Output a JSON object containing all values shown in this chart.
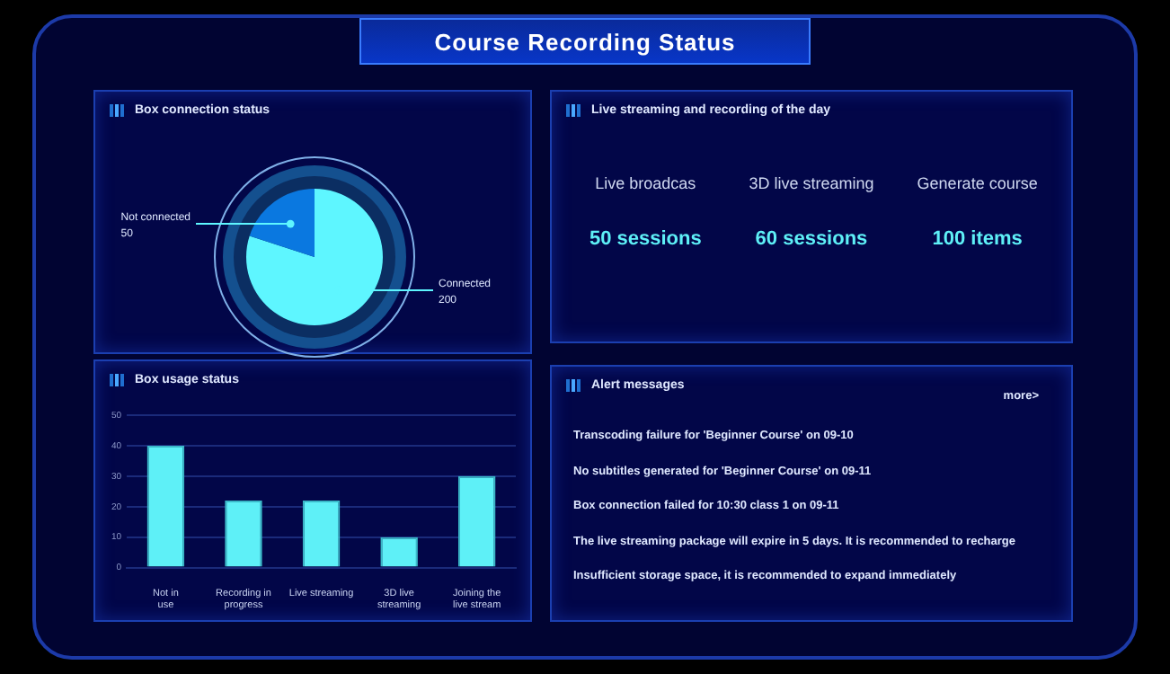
{
  "chart_data": [
    {
      "type": "other",
      "title": "Course Recording Status"
    },
    {
      "type": "pie",
      "title": "Box connection status",
      "categories": [
        "Connected",
        "Not connected"
      ],
      "values": [
        200,
        50
      ],
      "colors": [
        "#5ef6ff",
        "#0a78e0"
      ],
      "data_labels": true
    },
    {
      "type": "other",
      "title": "Live streaming and recording of the day",
      "annotations": [
        "Live broadcas",
        "3D live streaming",
        "Generate course",
        "50 sessions",
        "60 sessions",
        "100 items"
      ]
    },
    {
      "type": "bar",
      "title": "Box usage status",
      "categories": [
        "Not in use",
        "Recording in progress",
        "Live streaming",
        "3D live streaming",
        "Joining the live stream"
      ],
      "values": [
        40,
        22,
        22,
        10,
        30
      ],
      "color": "#5ef0f7",
      "ylim": [
        0,
        50
      ],
      "yticks": [
        0,
        10,
        20,
        30,
        40,
        50
      ],
      "grid": "y"
    },
    {
      "type": "other",
      "title": "Alert messages",
      "annotations": [
        "more>",
        "Transcoding failure for 'Beginner Course' on 09-10",
        "No subtitles generated for 'Beginner Course' on 09-11",
        "Box connection failed for 10:30 class 1 on 09-11",
        "The live streaming package will expire in 5 days. It is recommended to recharge",
        "Insufficient storage space, it is recommended to expand immediately"
      ]
    }
  ]
}
